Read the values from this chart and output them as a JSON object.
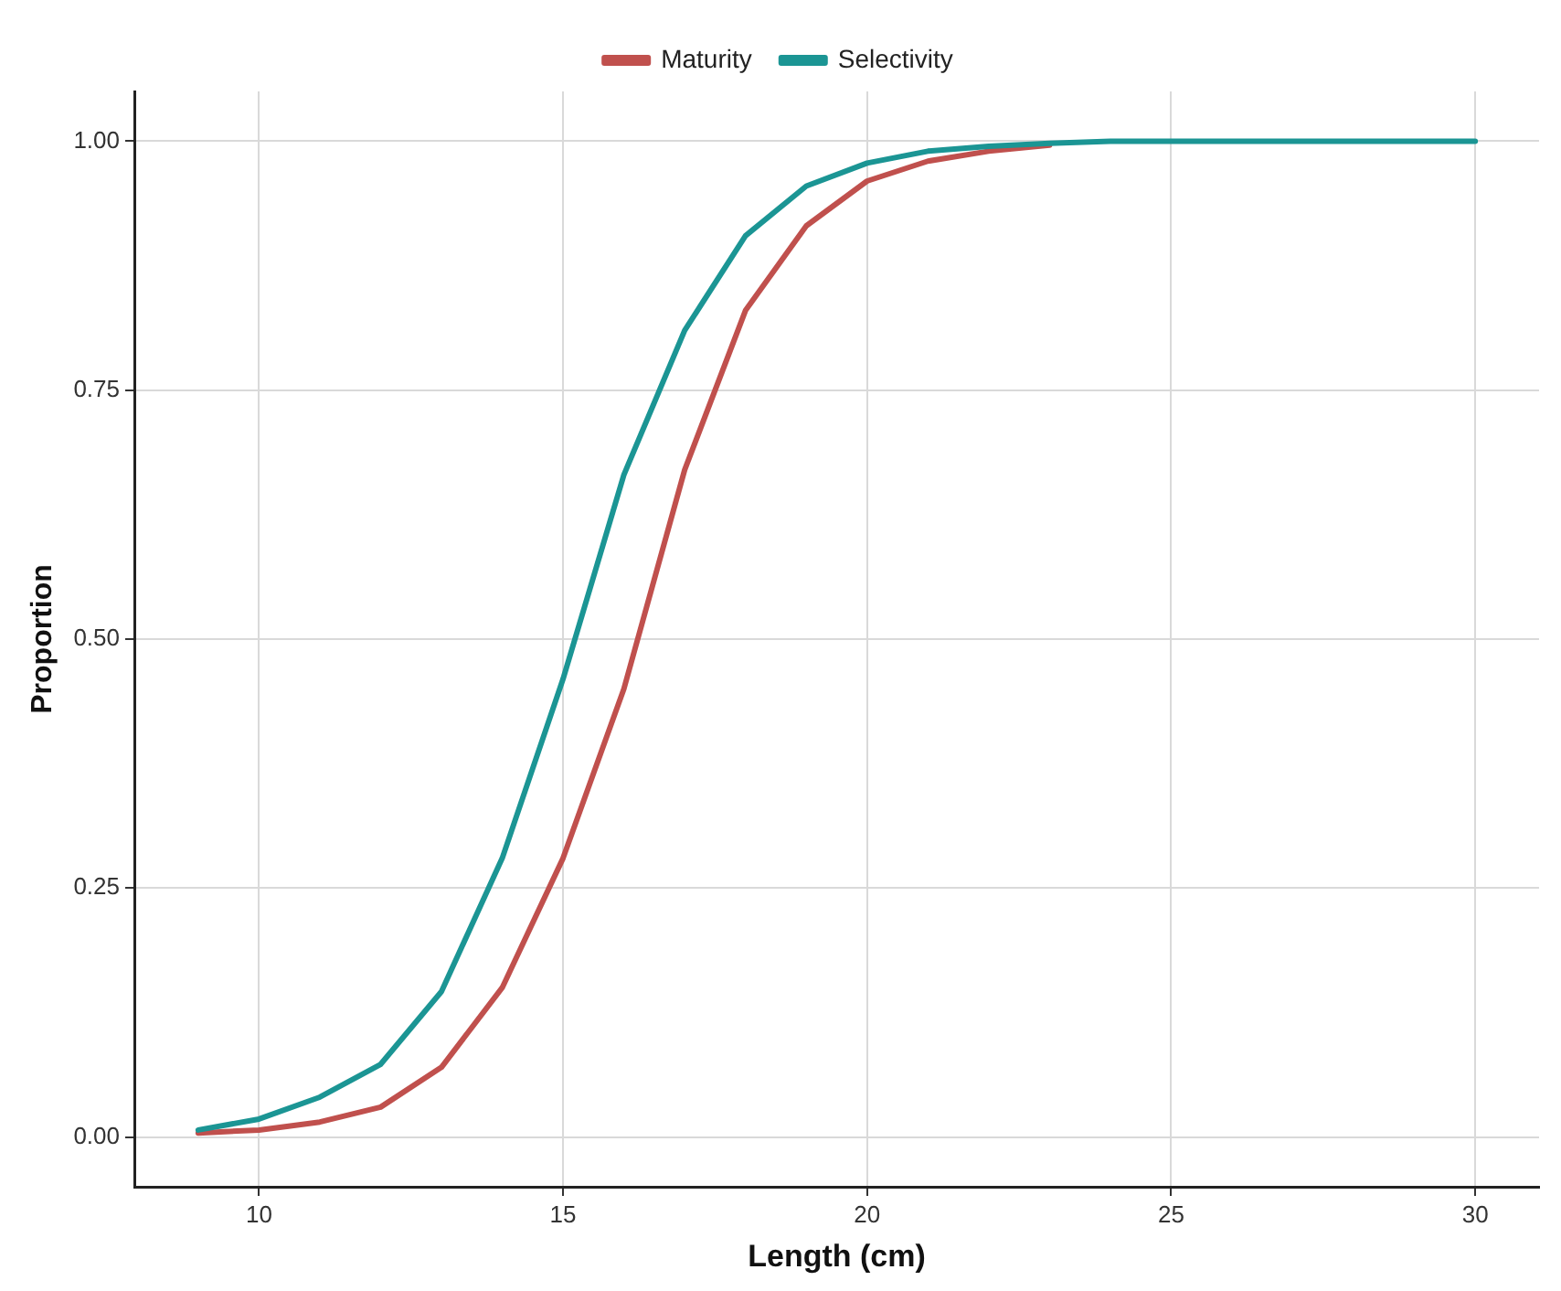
{
  "chart_data": {
    "type": "line",
    "xlabel": "Length (cm)",
    "ylabel": "Proportion",
    "x": [
      9,
      10,
      11,
      12,
      13,
      14,
      15,
      16,
      17,
      18,
      19,
      20,
      21,
      22,
      23,
      24,
      25,
      26,
      27,
      28,
      29,
      30
    ],
    "series": [
      {
        "name": "Maturity",
        "color": "#c0504d",
        "values": [
          0.004,
          0.007,
          0.015,
          0.03,
          0.07,
          0.15,
          0.28,
          0.45,
          0.67,
          0.83,
          0.915,
          0.96,
          0.98,
          0.99,
          0.996,
          null,
          null,
          null,
          null,
          null,
          null,
          null
        ]
      },
      {
        "name": "Selectivity",
        "color": "#1b9594",
        "values": [
          0.007,
          0.018,
          0.04,
          0.073,
          0.146,
          0.28,
          0.46,
          0.665,
          0.81,
          0.905,
          0.955,
          0.978,
          0.99,
          0.995,
          0.998,
          1,
          1,
          1,
          1,
          1,
          1,
          1
        ]
      }
    ],
    "xlim": [
      7.95,
      31.05
    ],
    "xticks": [
      10,
      15,
      20,
      25,
      30
    ],
    "ylim": [
      -0.05,
      1.05
    ],
    "yticks": [
      {
        "value": 0,
        "label": "0.00"
      },
      {
        "value": 0.25,
        "label": "0.25"
      },
      {
        "value": 0.5,
        "label": "0.50"
      },
      {
        "value": 0.75,
        "label": "0.75"
      },
      {
        "value": 1,
        "label": "1.00"
      }
    ],
    "grid": true,
    "legend": "top",
    "marker": "none",
    "line_style": "solid"
  }
}
